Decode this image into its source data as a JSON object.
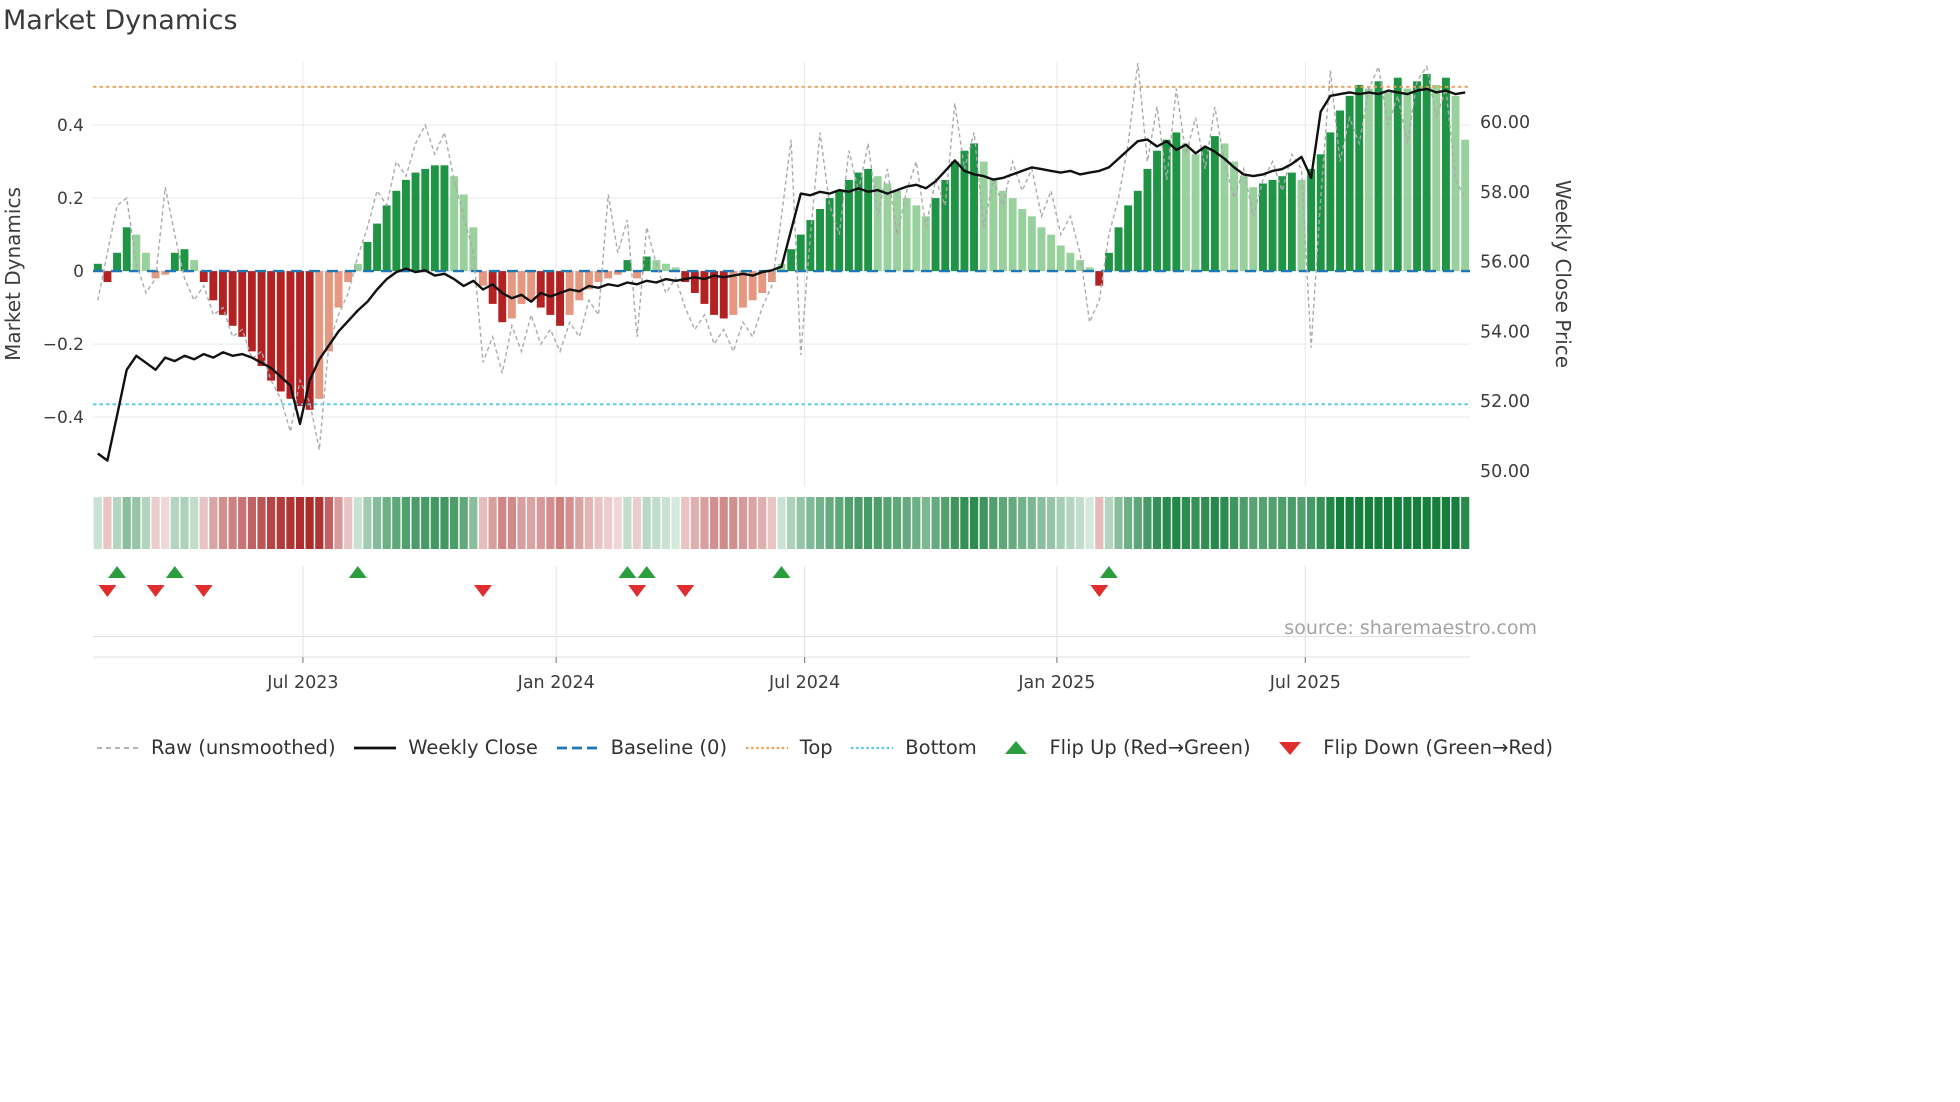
{
  "header": {
    "title": "Market Dynamics"
  },
  "colors": {
    "bar_green_strong": "#1e9444",
    "bar_green_light": "#98d19c",
    "bar_red_strong": "#b22222",
    "bar_red_light": "#e59780",
    "weekly_close_line": "#111111",
    "raw_line": "#aaaaaa",
    "baseline": "#1f77b4",
    "top_line": "#e8a25e",
    "bottom_line": "#55c8ef",
    "flip_up": "#2a9d3f",
    "flip_down": "#e02d2d",
    "grid": "#e9e9e9",
    "panel_line": "#e0e0e0",
    "tick_mark": "#888888",
    "tick_text": "#3d3d3d",
    "source_text": "#a3a3a3",
    "heat_green": "#157f3c",
    "heat_red": "#a61e1e"
  },
  "chart_data": {
    "type": "bar",
    "overlays": [
      "line",
      "heatmap-strip",
      "flip-markers"
    ],
    "title": "Market Dynamics",
    "frequency": "weekly",
    "left_axis": {
      "label": "Market Dynamics",
      "ticks": [
        -0.4,
        -0.2,
        0,
        0.2,
        0.4
      ],
      "range": [
        -0.589,
        0.573
      ]
    },
    "right_axis": {
      "label": "Weekly Close Price",
      "ticks": [
        50,
        52,
        54,
        56,
        58,
        60
      ],
      "range": [
        49.57,
        61.72
      ]
    },
    "x_ticks": [
      {
        "pos": 21.3,
        "label": "Jul 2023"
      },
      {
        "pos": 47.6,
        "label": "Jan 2024"
      },
      {
        "pos": 73.4,
        "label": "Jul 2024"
      },
      {
        "pos": 99.6,
        "label": "Jan 2025"
      },
      {
        "pos": 125.4,
        "label": "Jul 2025"
      }
    ],
    "reference_lines": {
      "baseline": 0,
      "top": 0.505,
      "bottom": -0.365
    },
    "series": {
      "dynamics_smoothed": [
        0.02,
        -0.03,
        0.05,
        0.12,
        0.1,
        0.05,
        -0.02,
        -0.01,
        0.05,
        0.06,
        0.03,
        -0.03,
        -0.08,
        -0.12,
        -0.15,
        -0.18,
        -0.22,
        -0.26,
        -0.3,
        -0.33,
        -0.35,
        -0.37,
        -0.38,
        -0.35,
        -0.22,
        -0.1,
        -0.03,
        0.02,
        0.08,
        0.13,
        0.18,
        0.22,
        0.25,
        0.27,
        0.28,
        0.29,
        0.29,
        0.26,
        0.21,
        0.12,
        -0.04,
        -0.09,
        -0.14,
        -0.13,
        -0.09,
        -0.08,
        -0.1,
        -0.12,
        -0.15,
        -0.12,
        -0.08,
        -0.05,
        -0.03,
        -0.02,
        -0.01,
        0.03,
        -0.02,
        0.04,
        0.03,
        0.02,
        0.01,
        -0.03,
        -0.06,
        -0.09,
        -0.12,
        -0.13,
        -0.12,
        -0.1,
        -0.08,
        -0.06,
        -0.03,
        0.02,
        0.06,
        0.1,
        0.14,
        0.17,
        0.2,
        0.22,
        0.25,
        0.27,
        0.28,
        0.26,
        0.24,
        0.22,
        0.2,
        0.18,
        0.15,
        0.2,
        0.25,
        0.3,
        0.33,
        0.35,
        0.3,
        0.25,
        0.22,
        0.2,
        0.17,
        0.15,
        0.12,
        0.1,
        0.07,
        0.05,
        0.03,
        0.01,
        -0.04,
        0.05,
        0.12,
        0.18,
        0.22,
        0.28,
        0.33,
        0.36,
        0.38,
        0.35,
        0.32,
        0.34,
        0.37,
        0.35,
        0.3,
        0.26,
        0.23,
        0.24,
        0.25,
        0.26,
        0.27,
        0.25,
        0.28,
        0.32,
        0.38,
        0.44,
        0.48,
        0.51,
        0.5,
        0.52,
        0.49,
        0.53,
        0.5,
        0.52,
        0.54,
        0.51,
        0.53,
        0.48,
        0.36
      ],
      "dynamics_raw": [
        -0.08,
        0.05,
        0.18,
        0.2,
        0.02,
        -0.06,
        -0.02,
        0.23,
        0.1,
        -0.02,
        -0.08,
        -0.04,
        -0.12,
        -0.1,
        -0.18,
        -0.16,
        -0.24,
        -0.22,
        -0.3,
        -0.35,
        -0.44,
        -0.3,
        -0.36,
        -0.49,
        -0.2,
        -0.12,
        -0.06,
        0.04,
        0.12,
        0.22,
        0.18,
        0.3,
        0.26,
        0.35,
        0.4,
        0.32,
        0.38,
        0.25,
        0.15,
        0.05,
        -0.25,
        -0.18,
        -0.28,
        -0.15,
        -0.22,
        -0.12,
        -0.2,
        -0.16,
        -0.22,
        -0.14,
        -0.18,
        -0.08,
        -0.12,
        0.21,
        0.05,
        0.14,
        -0.18,
        0.12,
        0.02,
        -0.06,
        -0.02,
        -0.1,
        -0.16,
        -0.12,
        -0.2,
        -0.16,
        -0.22,
        -0.14,
        -0.18,
        -0.1,
        -0.04,
        0.15,
        0.36,
        -0.23,
        0.1,
        0.38,
        0.18,
        0.1,
        0.33,
        0.22,
        0.35,
        0.15,
        0.28,
        0.1,
        0.22,
        0.3,
        0.12,
        0.25,
        0.18,
        0.46,
        0.28,
        0.38,
        0.12,
        0.25,
        0.18,
        0.3,
        0.22,
        0.28,
        0.15,
        0.22,
        0.1,
        0.15,
        0.05,
        -0.14,
        -0.08,
        0.1,
        0.2,
        0.35,
        0.57,
        0.3,
        0.45,
        0.25,
        0.5,
        0.32,
        0.42,
        0.28,
        0.45,
        0.3,
        0.2,
        0.28,
        0.15,
        0.25,
        0.3,
        0.22,
        0.32,
        0.28,
        -0.21,
        0.2,
        0.55,
        0.3,
        0.42,
        0.35,
        0.5,
        0.56,
        0.4,
        0.48,
        0.35,
        0.52,
        0.56,
        0.42,
        0.5,
        0.25,
        0.2
      ],
      "weekly_close": [
        50.5,
        50.3,
        51.6,
        52.9,
        53.3,
        53.1,
        52.9,
        53.25,
        53.15,
        53.3,
        53.2,
        53.35,
        53.25,
        53.4,
        53.3,
        53.35,
        53.25,
        53.1,
        52.95,
        52.7,
        52.45,
        51.35,
        52.6,
        53.2,
        53.6,
        54.0,
        54.3,
        54.6,
        54.85,
        55.2,
        55.5,
        55.7,
        55.8,
        55.7,
        55.75,
        55.6,
        55.65,
        55.5,
        55.3,
        55.45,
        55.2,
        55.35,
        55.1,
        54.95,
        55.05,
        54.85,
        55.1,
        55.0,
        55.1,
        55.2,
        55.15,
        55.3,
        55.25,
        55.35,
        55.3,
        55.4,
        55.35,
        55.45,
        55.4,
        55.5,
        55.45,
        55.5,
        55.55,
        55.5,
        55.6,
        55.55,
        55.6,
        55.65,
        55.6,
        55.7,
        55.75,
        55.85,
        56.9,
        57.95,
        57.9,
        58.0,
        57.95,
        58.05,
        58.0,
        58.1,
        58.0,
        58.05,
        57.95,
        58.05,
        58.15,
        58.2,
        58.1,
        58.3,
        58.6,
        58.9,
        58.6,
        58.5,
        58.45,
        58.35,
        58.4,
        58.5,
        58.6,
        58.7,
        58.65,
        58.6,
        58.55,
        58.6,
        58.5,
        58.55,
        58.6,
        58.7,
        58.95,
        59.2,
        59.45,
        59.5,
        59.3,
        59.45,
        59.2,
        59.35,
        59.1,
        59.3,
        59.15,
        58.95,
        58.7,
        58.5,
        58.45,
        58.5,
        58.6,
        58.65,
        58.8,
        59.0,
        58.4,
        60.3,
        60.75,
        60.8,
        60.85,
        60.8,
        60.85,
        60.8,
        60.9,
        60.85,
        60.8,
        60.9,
        60.95,
        60.85,
        60.9,
        60.8,
        60.85
      ]
    },
    "flip_up_indices": [
      2,
      8,
      27,
      55,
      57,
      71,
      105
    ],
    "flip_down_indices": [
      1,
      6,
      11,
      40,
      56,
      61,
      104
    ],
    "source": "source: sharemaestro.com"
  },
  "legend": {
    "items": [
      {
        "label": "Raw (unsmoothed)",
        "swatch": "dashed-line",
        "color": "#aaaaaa"
      },
      {
        "label": "Weekly Close",
        "swatch": "solid-line",
        "color": "#111111"
      },
      {
        "label": "Baseline (0)",
        "swatch": "long-dash-line",
        "color": "#1f77b4"
      },
      {
        "label": "Top",
        "swatch": "dotted-line",
        "color": "#e8a25e"
      },
      {
        "label": "Bottom",
        "swatch": "dotted-line",
        "color": "#55c8ef"
      },
      {
        "label": "Flip Up (Red→Green)",
        "swatch": "triangle-up",
        "color": "#2a9d3f"
      },
      {
        "label": "Flip Down (Green→Red)",
        "swatch": "triangle-down",
        "color": "#e02d2d"
      }
    ]
  }
}
